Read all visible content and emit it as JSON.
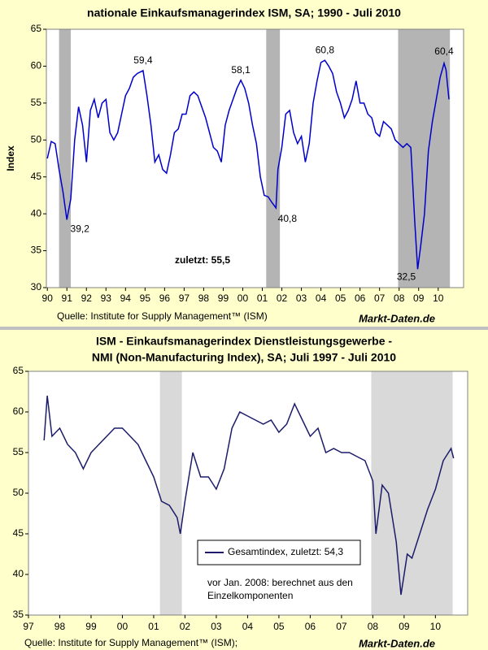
{
  "chart_data": [
    {
      "type": "line",
      "title": [
        "nationale Einkaufsmanagerindex ISM, SA; 1990 - Juli 2010"
      ],
      "y_label": "Index",
      "note": [
        "zuletzt: 55,5"
      ],
      "source": "Quelle: Institute for Supply Management™ (ISM)",
      "brand": "Markt-Daten.de",
      "xlim": [
        1989.95,
        2011.3
      ],
      "ylim": [
        30,
        65
      ],
      "yticks": [
        30,
        35,
        40,
        45,
        50,
        55,
        60,
        65
      ],
      "xticks": [
        {
          "value": 1990,
          "label": "90"
        },
        {
          "value": 1991,
          "label": "91"
        },
        {
          "value": 1992,
          "label": "92"
        },
        {
          "value": 1993,
          "label": "93"
        },
        {
          "value": 1994,
          "label": "94"
        },
        {
          "value": 1995,
          "label": "95"
        },
        {
          "value": 1996,
          "label": "96"
        },
        {
          "value": 1997,
          "label": "97"
        },
        {
          "value": 1998,
          "label": "98"
        },
        {
          "value": 1999,
          "label": "99"
        },
        {
          "value": 2000,
          "label": "00"
        },
        {
          "value": 2001,
          "label": "01"
        },
        {
          "value": 2002,
          "label": "02"
        },
        {
          "value": 2003,
          "label": "03"
        },
        {
          "value": 2004,
          "label": "04"
        },
        {
          "value": 2005,
          "label": "05"
        },
        {
          "value": 2006,
          "label": "06"
        },
        {
          "value": 2007,
          "label": "07"
        },
        {
          "value": 2008,
          "label": "08"
        },
        {
          "value": 2009,
          "label": "09"
        },
        {
          "value": 2010,
          "label": "10"
        }
      ],
      "shaded": [
        [
          1990.6,
          1991.2
        ],
        [
          2001.2,
          2001.9
        ],
        [
          2007.95,
          2010.6
        ]
      ],
      "shade_color": "#b4b4b4",
      "series": [
        {
          "color": "#0000cc",
          "x": [
            1990.0,
            1990.2,
            1990.4,
            1990.6,
            1990.8,
            1991.0,
            1991.2,
            1991.4,
            1991.6,
            1991.8,
            1992.0,
            1992.2,
            1992.4,
            1992.6,
            1992.8,
            1993.0,
            1993.2,
            1993.4,
            1993.6,
            1993.8,
            1994.0,
            1994.2,
            1994.4,
            1994.6,
            1994.9,
            1995.1,
            1995.3,
            1995.5,
            1995.7,
            1995.9,
            1996.1,
            1996.3,
            1996.5,
            1996.7,
            1996.9,
            1997.1,
            1997.3,
            1997.5,
            1997.7,
            1997.9,
            1998.1,
            1998.3,
            1998.5,
            1998.7,
            1998.9,
            1999.1,
            1999.3,
            1999.5,
            1999.7,
            1999.9,
            2000.1,
            2000.3,
            2000.5,
            2000.7,
            2000.9,
            2001.1,
            2001.3,
            2001.5,
            2001.7,
            2001.8,
            2002.0,
            2002.2,
            2002.4,
            2002.6,
            2002.8,
            2003.0,
            2003.2,
            2003.4,
            2003.6,
            2003.8,
            2004.0,
            2004.2,
            2004.4,
            2004.6,
            2004.8,
            2005.0,
            2005.2,
            2005.4,
            2005.6,
            2005.8,
            2006.0,
            2006.2,
            2006.4,
            2006.6,
            2006.8,
            2007.0,
            2007.2,
            2007.4,
            2007.6,
            2007.8,
            2008.0,
            2008.2,
            2008.4,
            2008.6,
            2008.8,
            2008.95,
            2009.1,
            2009.3,
            2009.5,
            2009.7,
            2009.9,
            2010.1,
            2010.3,
            2010.4,
            2010.55
          ],
          "values": [
            47.5,
            49.8,
            49.5,
            46,
            43,
            39.2,
            42,
            50,
            54.5,
            52,
            47,
            54,
            55.5,
            53,
            55,
            55.5,
            51,
            50,
            51,
            53.5,
            56,
            57,
            58.5,
            59,
            59.4,
            56,
            52,
            47,
            48,
            46,
            45.5,
            48,
            51,
            51.5,
            53.5,
            53.5,
            56,
            56.5,
            56,
            54.5,
            53,
            51,
            49,
            48.5,
            47,
            52,
            54,
            55.5,
            57,
            58.1,
            57,
            55,
            52,
            49.5,
            45,
            42.5,
            42.3,
            41.5,
            40.8,
            46,
            49,
            53.5,
            54,
            51,
            49.5,
            50.5,
            47,
            49.5,
            55,
            58,
            60.5,
            60.8,
            60,
            59,
            56.5,
            55,
            53,
            54,
            55.5,
            58,
            55,
            55,
            53.5,
            53,
            51,
            50.5,
            52.5,
            52,
            51.5,
            50,
            49.5,
            49,
            49.5,
            49,
            39,
            32.5,
            35.5,
            40,
            48.5,
            52.5,
            55.5,
            58.5,
            60.4,
            59.5,
            55.5
          ]
        }
      ],
      "annotations": [
        {
          "label": "59,4",
          "x": 1994.9,
          "value": 59.4
        },
        {
          "label": "39,2",
          "x": 1991.0,
          "value": 39.2
        },
        {
          "label": "58,1",
          "x": 1999.9,
          "value": 58.1
        },
        {
          "label": "40,8",
          "x": 2001.7,
          "value": 40.8
        },
        {
          "label": "60,8",
          "x": 2004.2,
          "value": 60.8
        },
        {
          "label": "32,5",
          "x": 2008.95,
          "value": 32.5
        },
        {
          "label": "60,4",
          "x": 2010.3,
          "value": 60.4
        }
      ]
    },
    {
      "type": "line",
      "title": [
        "ISM - Einkaufsmanagerindex Dienstleistungsgewerbe -",
        "NMI (Non-Manufacturing Index), SA;  Juli 1997 - Juli 2010"
      ],
      "note": [
        "vor Jan. 2008: berechnet aus den",
        "Einzelkomponenten"
      ],
      "source": "Quelle: Institute for Supply Management™ (ISM);",
      "brand": "Markt-Daten.de",
      "legend": "center",
      "xlim": [
        1997,
        2011.03
      ],
      "ylim": [
        35,
        65
      ],
      "yticks": [
        35,
        40,
        45,
        50,
        55,
        60,
        65
      ],
      "xticks": [
        {
          "value": 1997,
          "label": "97"
        },
        {
          "value": 1998,
          "label": "98"
        },
        {
          "value": 1999,
          "label": "99"
        },
        {
          "value": 2000,
          "label": "00"
        },
        {
          "value": 2001,
          "label": "01"
        },
        {
          "value": 2002,
          "label": "02"
        },
        {
          "value": 2003,
          "label": "03"
        },
        {
          "value": 2004,
          "label": "04"
        },
        {
          "value": 2005,
          "label": "05"
        },
        {
          "value": 2006,
          "label": "06"
        },
        {
          "value": 2007,
          "label": "07"
        },
        {
          "value": 2008,
          "label": "08"
        },
        {
          "value": 2009,
          "label": "09"
        },
        {
          "value": 2010,
          "label": "10"
        }
      ],
      "shaded": [
        [
          2001.2,
          2001.9
        ],
        [
          2007.95,
          2010.55
        ]
      ],
      "shade_color": "#d9d9d9",
      "series": [
        {
          "name": "Gesamtindex, zuletzt: 54,3",
          "color": "#1c1c6b",
          "x": [
            1997.5,
            1997.6,
            1997.75,
            1998.0,
            1998.25,
            1998.5,
            1998.75,
            1999.0,
            1999.25,
            1999.5,
            1999.75,
            2000.0,
            2000.25,
            2000.5,
            2000.75,
            2001.0,
            2001.25,
            2001.5,
            2001.75,
            2001.85,
            2002.0,
            2002.25,
            2002.5,
            2002.75,
            2003.0,
            2003.25,
            2003.5,
            2003.75,
            2004.0,
            2004.25,
            2004.5,
            2004.75,
            2005.0,
            2005.25,
            2005.5,
            2005.75,
            2006.0,
            2006.25,
            2006.5,
            2006.75,
            2007.0,
            2007.25,
            2007.5,
            2007.75,
            2008.0,
            2008.1,
            2008.3,
            2008.5,
            2008.75,
            2008.9,
            2009.0,
            2009.1,
            2009.25,
            2009.5,
            2009.75,
            2010.0,
            2010.25,
            2010.5,
            2010.58
          ],
          "values": [
            56.5,
            62,
            57,
            58,
            56,
            55,
            53,
            55,
            56,
            57,
            58,
            58,
            57,
            56,
            54,
            52,
            49,
            48.5,
            47,
            45,
            49,
            55,
            52,
            52,
            50.5,
            53,
            58,
            60,
            59.5,
            59,
            58.5,
            59,
            57.5,
            58.5,
            61,
            59,
            57,
            58,
            55,
            55.5,
            55,
            55,
            54.5,
            54,
            51.5,
            45,
            51,
            50,
            44,
            37.5,
            40,
            42.5,
            42,
            45,
            48,
            50.5,
            54,
            55.5,
            54.3
          ]
        }
      ]
    }
  ]
}
